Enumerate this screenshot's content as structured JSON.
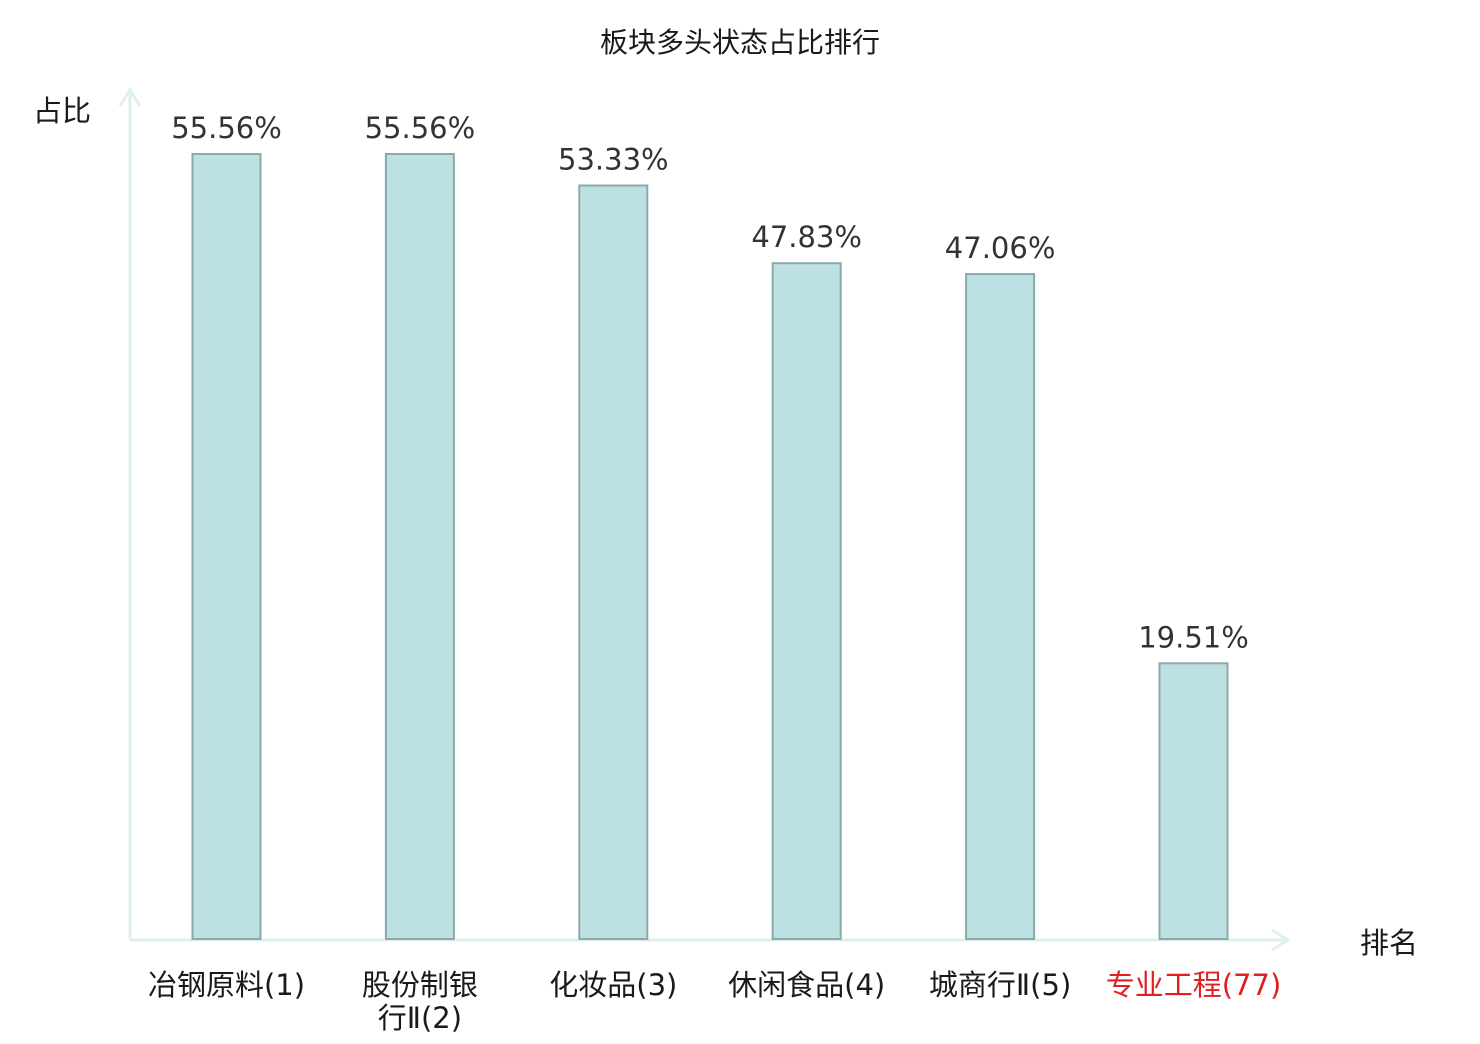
{
  "chart_data": {
    "type": "bar",
    "title": "板块多头状态占比排行",
    "ylabel": "占比",
    "xlabel": "排名",
    "categories": [
      [
        "冶钢原料(1)"
      ],
      [
        "股份制银",
        "行Ⅱ(2)"
      ],
      [
        "化妆品(3)"
      ],
      [
        "休闲食品(4)"
      ],
      [
        "城商行Ⅱ(5)"
      ],
      [
        "专业工程(77)"
      ]
    ],
    "values": [
      55.56,
      55.56,
      53.33,
      47.83,
      47.06,
      19.51
    ],
    "value_labels": [
      "55.56%",
      "55.56%",
      "53.33%",
      "47.83%",
      "47.06%",
      "19.51%"
    ],
    "highlight_index": 5,
    "ylim": [
      0,
      55.56
    ],
    "grid": false,
    "legend": "none"
  },
  "colors": {
    "bar_fill": "#bde0e3",
    "bar_stroke": "#8aa9ab",
    "axis": "#dff0ee",
    "text": "#333333",
    "label_dark": "#1a1a1a",
    "highlight": "#e02020"
  }
}
